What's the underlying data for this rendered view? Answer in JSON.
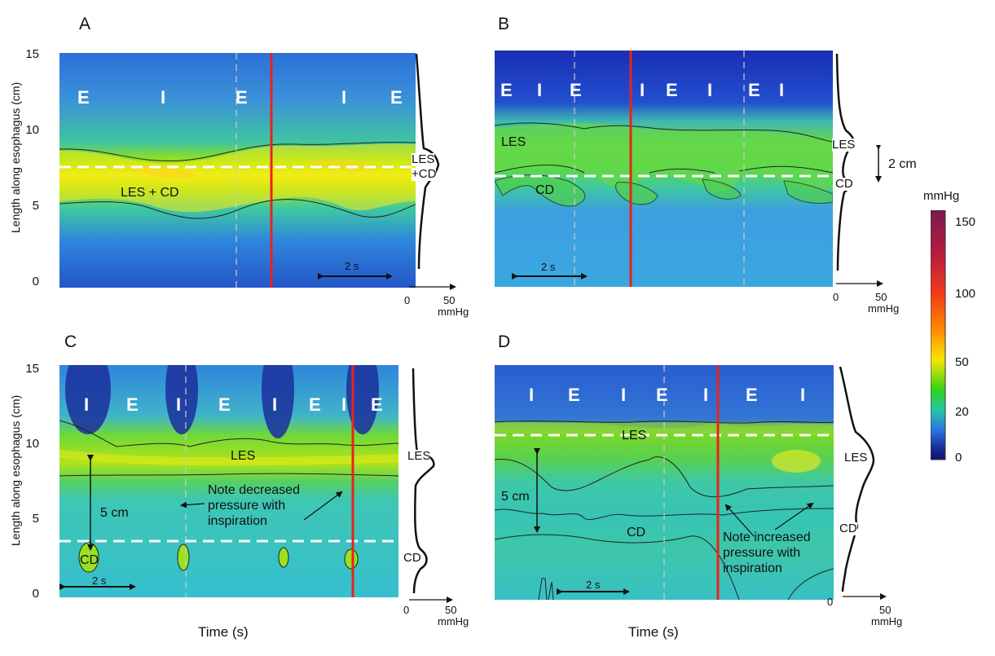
{
  "axes": {
    "y_label": "Length along esophagus (cm)",
    "x_label": "Time (s)",
    "y_ticks": [
      "15",
      "10",
      "5",
      "0"
    ],
    "profile_ticks": [
      "0",
      "50"
    ],
    "profile_unit": "mmHg"
  },
  "colorbar": {
    "unit": "mmHg",
    "ticks": [
      "150",
      "100",
      "50",
      "20",
      "0"
    ],
    "colors": [
      "#7a1a4e",
      "#c81e3a",
      "#f03a1a",
      "#ff8a00",
      "#f6e600",
      "#33d11a",
      "#24c7a8",
      "#2a78e0",
      "#1b2f9c",
      "#0d1468"
    ]
  },
  "panels": {
    "A": {
      "letter": "A",
      "phases": [
        "E",
        "I",
        "E",
        "I",
        "E"
      ],
      "labels": {
        "zone": "LES + CD",
        "profile_1": "LES",
        "profile_2": "+CD"
      },
      "scale_bar": "2 s"
    },
    "B": {
      "letter": "B",
      "phases": [
        "E",
        "I",
        "E",
        "I",
        "E",
        "I",
        "E",
        "I"
      ],
      "labels": {
        "les": "LES",
        "cd": "CD",
        "profile_les": "LES",
        "profile_cd": "CD",
        "separation": "2 cm"
      },
      "scale_bar": "2 s"
    },
    "C": {
      "letter": "C",
      "phases": [
        "I",
        "E",
        "I",
        "E",
        "I",
        "E",
        "I",
        "E"
      ],
      "labels": {
        "les": "LES",
        "cd": "CD",
        "profile_les": "LES",
        "profile_cd": "CD",
        "separation": "5 cm",
        "note_1": "Note decreased",
        "note_2": "pressure with",
        "note_3": "inspiration"
      },
      "scale_bar": "2 s"
    },
    "D": {
      "letter": "D",
      "phases": [
        "I",
        "E",
        "I",
        "E",
        "I",
        "E",
        "I"
      ],
      "labels": {
        "les": "LES",
        "cd": "CD",
        "profile_les": "LES",
        "profile_cd": "CD",
        "separation": "5 cm",
        "note_1": "Note increased",
        "note_2": "pressure with",
        "note_3": "inspiration"
      },
      "scale_bar": "2 s"
    }
  }
}
